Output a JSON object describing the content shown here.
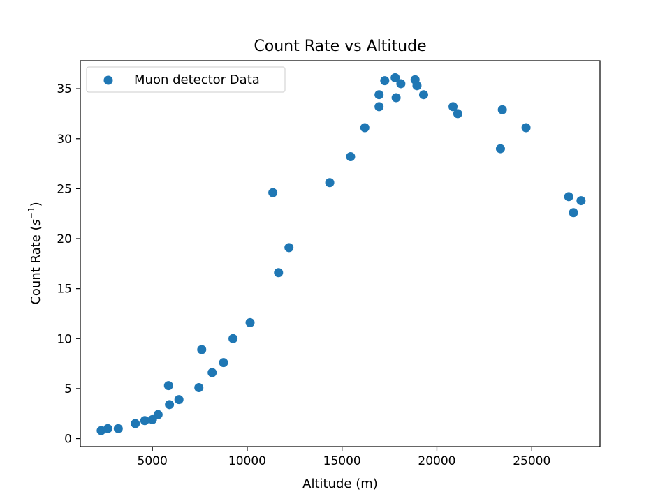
{
  "chart_data": {
    "type": "scatter",
    "title": "Count Rate vs Altitude",
    "xlabel": "Altitude (m)",
    "ylabel_main": "Count Rate (",
    "ylabel_unit_base": "s",
    "ylabel_unit_exp": "−1",
    "ylabel_close": ")",
    "xlim": [
      1200,
      28600
    ],
    "ylim": [
      -0.8,
      37.8
    ],
    "xticks": [
      5000,
      10000,
      15000,
      20000,
      25000
    ],
    "xtick_labels": [
      "5000",
      "10000",
      "15000",
      "20000",
      "25000"
    ],
    "yticks": [
      0,
      5,
      10,
      15,
      20,
      25,
      30,
      35
    ],
    "ytick_labels": [
      "0",
      "5",
      "10",
      "15",
      "20",
      "25",
      "30",
      "35"
    ],
    "grid": false,
    "legend_position": "upper-left",
    "marker_color": "#1f77b4",
    "series": [
      {
        "name": "Muon detector Data",
        "points": [
          {
            "x": 2300,
            "y": 0.8
          },
          {
            "x": 2650,
            "y": 1.0
          },
          {
            "x": 3200,
            "y": 1.0
          },
          {
            "x": 4100,
            "y": 1.5
          },
          {
            "x": 4600,
            "y": 1.8
          },
          {
            "x": 5000,
            "y": 1.9
          },
          {
            "x": 5300,
            "y": 2.4
          },
          {
            "x": 5850,
            "y": 5.3
          },
          {
            "x": 5900,
            "y": 3.4
          },
          {
            "x": 6400,
            "y": 3.9
          },
          {
            "x": 7450,
            "y": 5.1
          },
          {
            "x": 7600,
            "y": 8.9
          },
          {
            "x": 8150,
            "y": 6.6
          },
          {
            "x": 8750,
            "y": 7.6
          },
          {
            "x": 9250,
            "y": 10.0
          },
          {
            "x": 10150,
            "y": 11.6
          },
          {
            "x": 11350,
            "y": 24.6
          },
          {
            "x": 11650,
            "y": 16.6
          },
          {
            "x": 12200,
            "y": 19.1
          },
          {
            "x": 14350,
            "y": 25.6
          },
          {
            "x": 15450,
            "y": 28.2
          },
          {
            "x": 16200,
            "y": 31.1
          },
          {
            "x": 16950,
            "y": 34.4
          },
          {
            "x": 16950,
            "y": 33.2
          },
          {
            "x": 17250,
            "y": 35.8
          },
          {
            "x": 17800,
            "y": 36.1
          },
          {
            "x": 17850,
            "y": 34.1
          },
          {
            "x": 18100,
            "y": 35.5
          },
          {
            "x": 18850,
            "y": 35.9
          },
          {
            "x": 18950,
            "y": 35.3
          },
          {
            "x": 19300,
            "y": 34.4
          },
          {
            "x": 20850,
            "y": 33.2
          },
          {
            "x": 21100,
            "y": 32.5
          },
          {
            "x": 23350,
            "y": 29.0
          },
          {
            "x": 23450,
            "y": 32.9
          },
          {
            "x": 24700,
            "y": 31.1
          },
          {
            "x": 26950,
            "y": 24.2
          },
          {
            "x": 27200,
            "y": 22.6
          },
          {
            "x": 27600,
            "y": 23.8
          }
        ]
      }
    ]
  }
}
